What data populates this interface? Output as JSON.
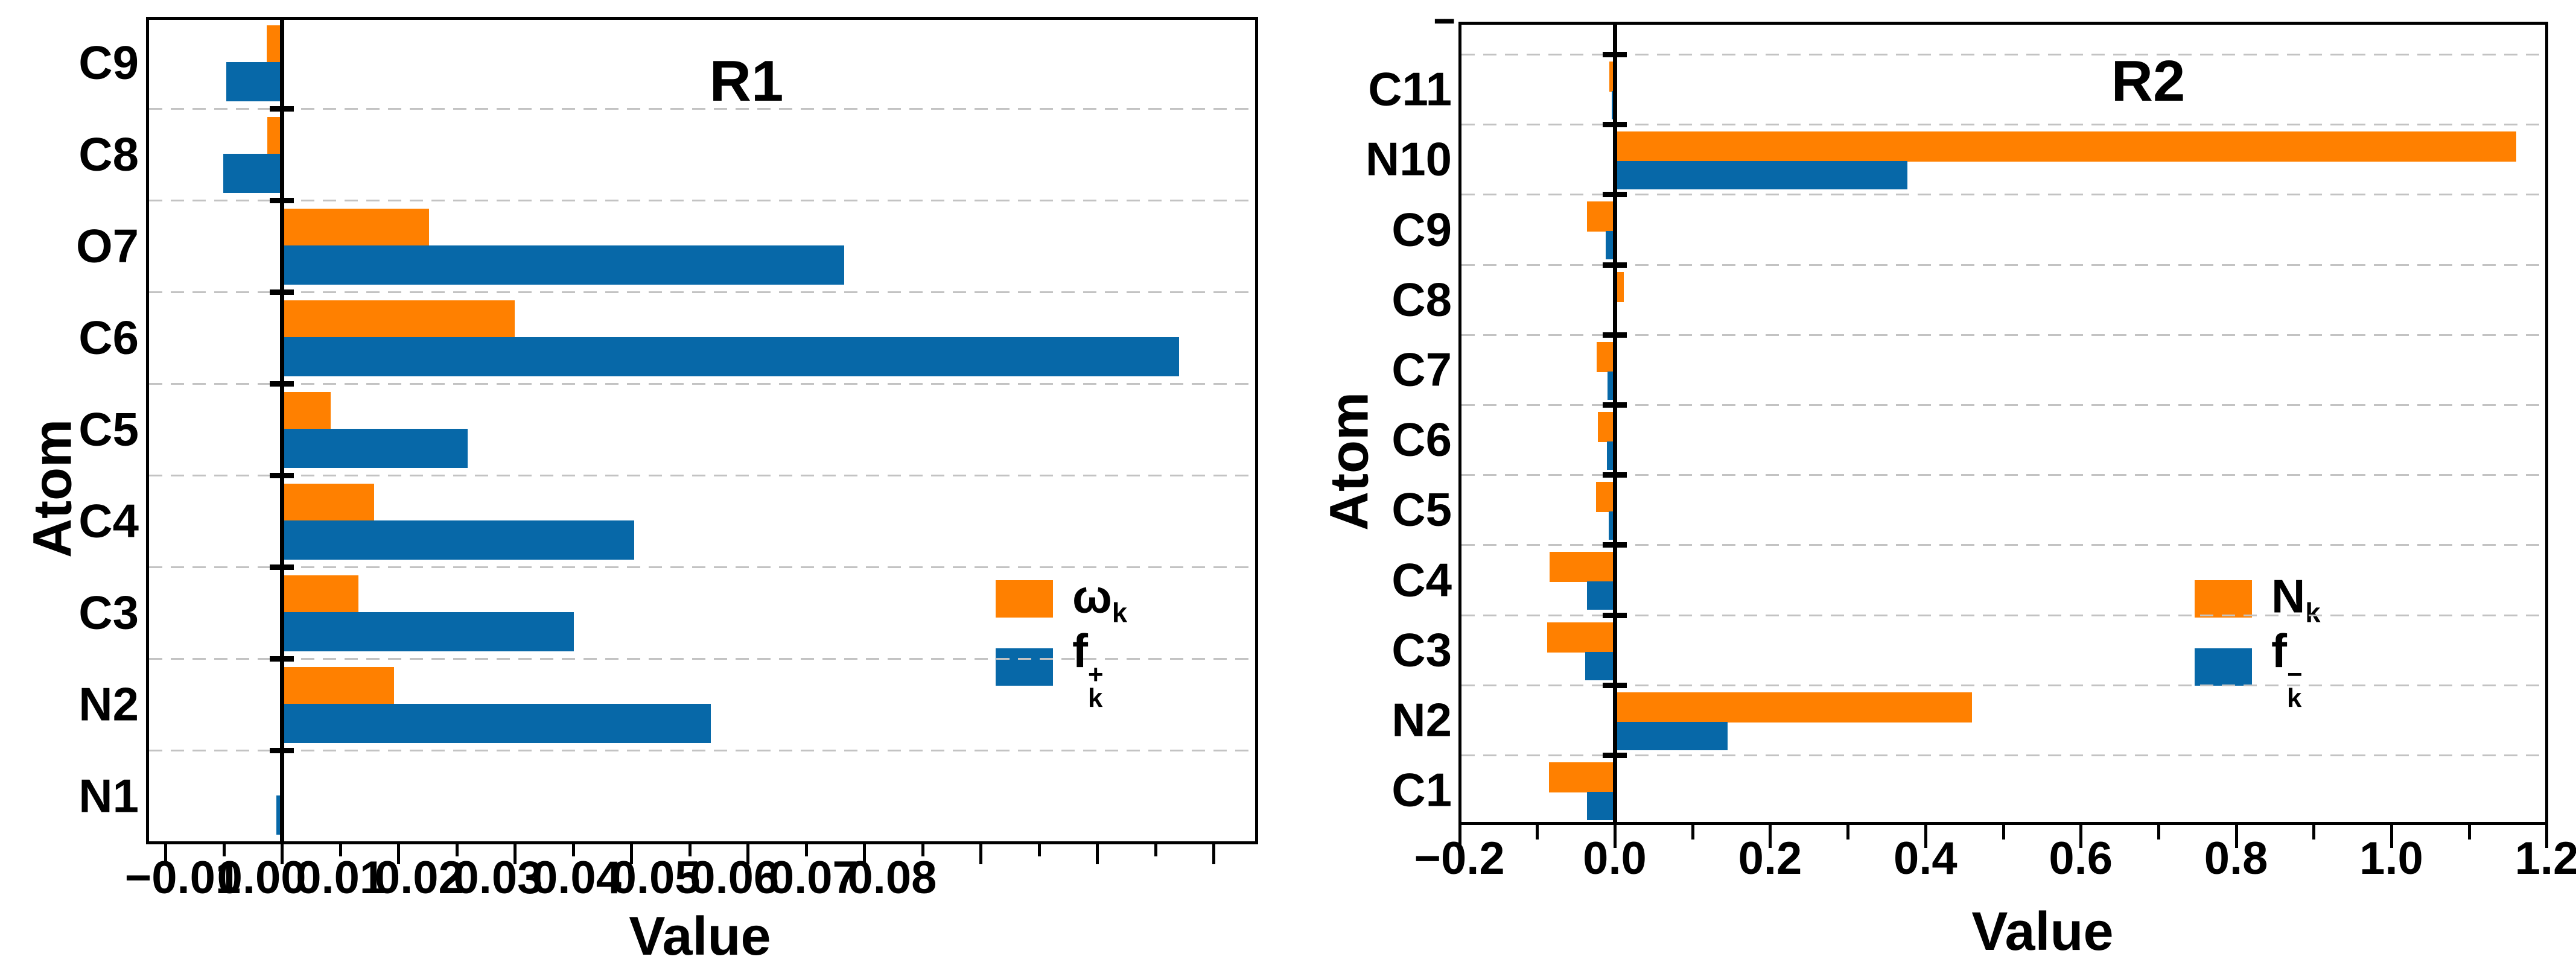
{
  "figure": {
    "background": "#ffffff",
    "series_colors": {
      "orange": "#FF8000",
      "blue": "#0768A8"
    },
    "gridline_color": "#c3c3c3"
  },
  "chart_data": [
    {
      "type": "bar",
      "orientation": "horizontal",
      "title": "R1",
      "xlabel": "Value",
      "ylabel": "Atom",
      "categories_top_to_bottom": [
        "C9",
        "C8",
        "O7",
        "C6",
        "C5",
        "C4",
        "C3",
        "N2",
        "N1"
      ],
      "series": [
        {
          "name": "omega_k",
          "legend": {
            "base": "ω",
            "sub": "k",
            "sup": ""
          },
          "color": "#FF8000",
          "values": [
            -0.0026,
            -0.0025,
            0.0253,
            0.04,
            0.0084,
            0.0159,
            0.0132,
            0.0193,
            0.0003
          ]
        },
        {
          "name": "f_k_plus",
          "legend": {
            "base": "f",
            "sub": "k",
            "sup": "+"
          },
          "color": "#0768A8",
          "values": [
            -0.0095,
            -0.0101,
            0.0966,
            0.1541,
            0.0319,
            0.0605,
            0.0502,
            0.0737,
            -0.0009
          ]
        }
      ],
      "x_tick_labels": [
        "−0.01",
        "0.00",
        "0.01",
        "0.02",
        "0.03",
        "0.04",
        "0.05",
        "0.06",
        "0.07",
        "0.08"
      ],
      "x_tick_step": 0.01,
      "xlim": [
        -0.023,
        0.167
      ],
      "grid": "dashed horizontal between categories",
      "legend_position": "center right",
      "note": "x tick labels are horizontally offset from tick marks in source figure"
    },
    {
      "type": "bar",
      "orientation": "horizontal",
      "title": "R2",
      "xlabel": "Value",
      "ylabel": "Atom",
      "clipped_top_label": "--",
      "categories_top_to_bottom": [
        "C11",
        "N10",
        "C9",
        "C8",
        "C7",
        "C6",
        "C5",
        "C4",
        "C3",
        "N2",
        "C1"
      ],
      "series": [
        {
          "name": "N_k",
          "legend": {
            "base": "N",
            "sub": "k",
            "sup": ""
          },
          "color": "#FF8000",
          "values": [
            -0.007,
            1.161,
            -0.036,
            0.012,
            -0.023,
            -0.022,
            -0.024,
            -0.084,
            -0.087,
            0.46,
            -0.085
          ]
        },
        {
          "name": "f_k_minus",
          "legend": {
            "base": "f",
            "sub": "k",
            "sup": "−"
          },
          "color": "#0768A8",
          "values": [
            -0.004,
            0.377,
            -0.012,
            0.003,
            -0.009,
            -0.01,
            -0.008,
            -0.036,
            -0.038,
            0.145,
            -0.036
          ]
        }
      ],
      "x_tick_labels": [
        "−0.2",
        "0.0",
        "0.2",
        "0.4",
        "0.6",
        "0.8",
        "1.0",
        "1.2"
      ],
      "x_tick_step": 0.1,
      "x_label_step": 0.2,
      "xlim": [
        -0.2,
        1.2
      ],
      "grid": "dashed horizontal between categories",
      "legend_position": "center right"
    }
  ]
}
